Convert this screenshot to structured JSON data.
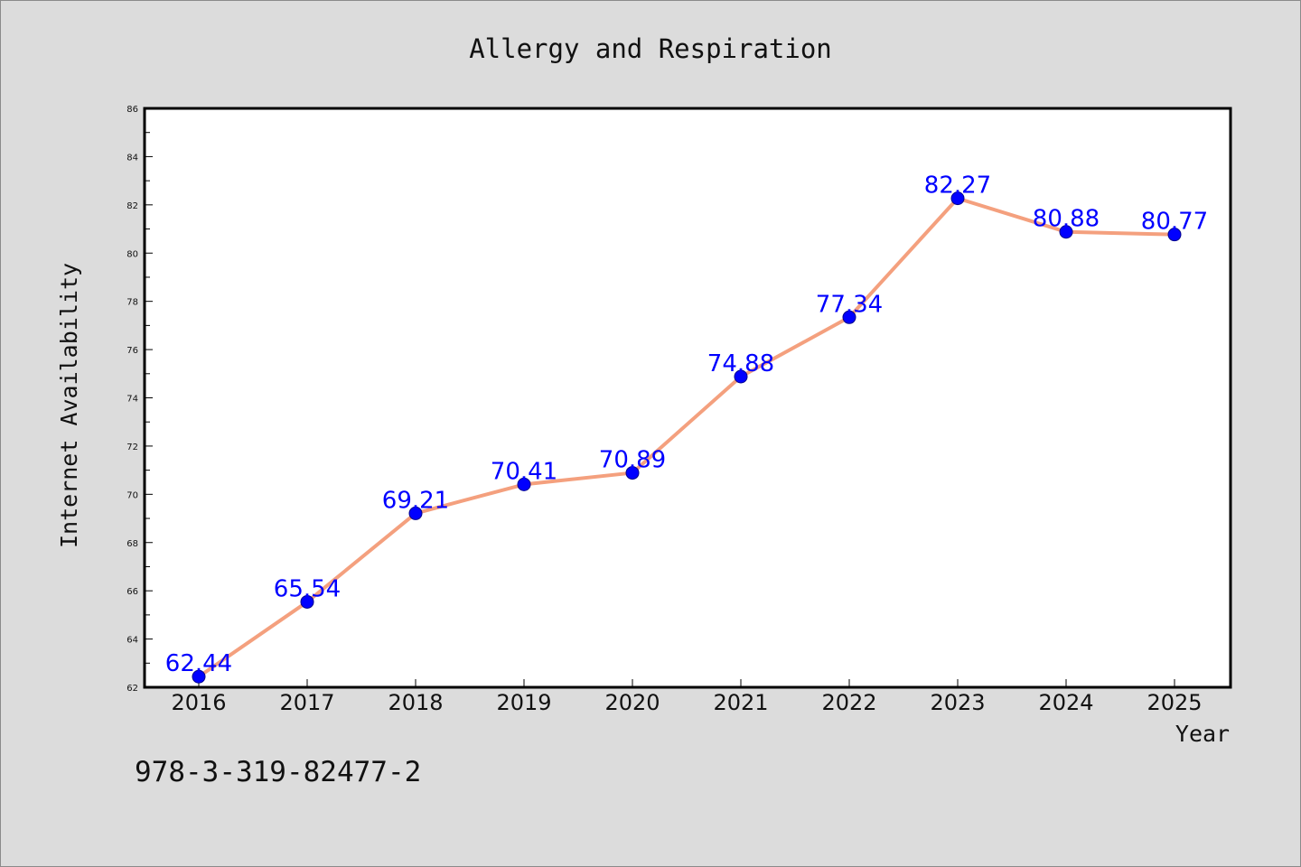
{
  "chart_data": {
    "type": "line",
    "title": "Allergy and Respiration",
    "xlabel": "Year",
    "ylabel": "Internet Availability",
    "x": [
      "2016",
      "2017",
      "2018",
      "2019",
      "2020",
      "2021",
      "2022",
      "2023",
      "2024",
      "2025"
    ],
    "series": [
      {
        "values": [
          62.44,
          65.54,
          69.21,
          70.41,
          70.89,
          74.88,
          77.34,
          82.27,
          80.88,
          80.77
        ],
        "labels": [
          "62.44",
          "65.54",
          "69.21",
          "70.41",
          "70.89",
          "74.88",
          "77.34",
          "82.27",
          "80.88",
          "80.77"
        ],
        "line_color": "#f4a07e",
        "marker_color": "#0000ff",
        "label_color": "#0000ff"
      }
    ],
    "ylim": [
      62,
      86
    ],
    "yticks": [
      "62",
      "64",
      "66",
      "68",
      "70",
      "72",
      "74",
      "76",
      "78",
      "80",
      "82",
      "84",
      "86"
    ],
    "grid": false,
    "legend": "none"
  },
  "footnote": "978-3-319-82477-2"
}
